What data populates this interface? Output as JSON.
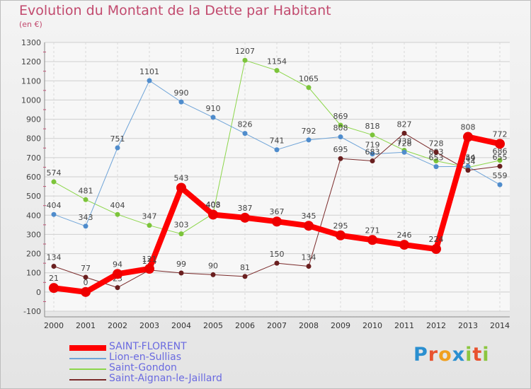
{
  "title": "Evolution du Montant de la Dette par Habitant",
  "unit_label": "(en €)",
  "brand": {
    "text": "Proxiti",
    "letters": [
      "P",
      "r",
      "o",
      "x",
      "i",
      "t",
      "i"
    ],
    "colors": [
      "#2a8fd0",
      "#e8522f",
      "#f0a020",
      "#2a8fd0",
      "#8cc63f",
      "#e8522f",
      "#8cc63f"
    ]
  },
  "chart_data": {
    "type": "line",
    "x": [
      "2000",
      "2001",
      "2002",
      "2003",
      "2004",
      "2005",
      "2006",
      "2007",
      "2008",
      "2009",
      "2010",
      "2011",
      "2012",
      "2013",
      "2014"
    ],
    "ylim": [
      -100,
      1300
    ],
    "yticks": [
      -100,
      0,
      100,
      200,
      300,
      400,
      500,
      600,
      700,
      800,
      900,
      1000,
      1100,
      1200,
      1300
    ],
    "grid": true,
    "legend_position": "bottom-left",
    "series": [
      {
        "name": "Saint-Gondon",
        "color": "#8cd64a",
        "dot": "#7cc43a",
        "width": 1,
        "values": [
          574,
          481,
          404,
          347,
          303,
          408,
          1207,
          1154,
          1065,
          869,
          818,
          738,
          683,
          649,
          686
        ]
      },
      {
        "name": "Lion-en-Sullias",
        "color": "#6fa4d8",
        "dot": "#4f8ccc",
        "width": 1,
        "values": [
          404,
          343,
          751,
          1101,
          990,
          910,
          826,
          741,
          792,
          808,
          719,
          728,
          653,
          654,
          559
        ]
      },
      {
        "name": "Saint-Aignan-le-Jaillard",
        "color": "#7a2a2a",
        "dot": "#6a1f1f",
        "width": 1,
        "values": [
          134,
          77,
          23,
          114,
          99,
          90,
          81,
          150,
          134,
          695,
          683,
          827,
          728,
          634,
          655
        ]
      },
      {
        "name": "SAINT-FLORENT",
        "color": "#ff0000",
        "dot": "#ee0000",
        "width": 8,
        "values": [
          21,
          0,
          94,
          121,
          543,
          403,
          387,
          367,
          345,
          295,
          271,
          246,
          224,
          808,
          772
        ]
      }
    ],
    "legend_order": [
      "SAINT-FLORENT",
      "Lion-en-Sullias",
      "Saint-Gondon",
      "Saint-Aignan-le-Jaillard"
    ]
  }
}
